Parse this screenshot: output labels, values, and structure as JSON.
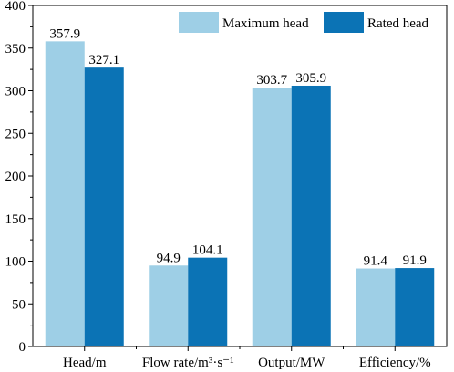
{
  "chart_data": {
    "type": "bar",
    "categories": [
      "Head/m",
      "Flow rate/m³·s⁻¹",
      "Output/MW",
      "Efficiency/%"
    ],
    "series": [
      {
        "name": "Maximum head",
        "values": [
          357.9,
          94.9,
          303.7,
          91.4
        ],
        "color": "#9ecfe6"
      },
      {
        "name": "Rated head",
        "values": [
          327.1,
          104.1,
          305.9,
          91.9
        ],
        "color": "#0b73b5"
      }
    ],
    "title": "",
    "xlabel": "",
    "ylabel": "",
    "ylim": [
      0,
      400
    ],
    "yticks": [
      0,
      50,
      100,
      150,
      200,
      250,
      300,
      350,
      400
    ],
    "data_labels": [
      [
        "357.9",
        "94.9",
        "303.7",
        "91.4"
      ],
      [
        "327.1",
        "104.1",
        "305.9",
        "91.9"
      ]
    ],
    "grid": false,
    "legend_position": "top-right"
  }
}
